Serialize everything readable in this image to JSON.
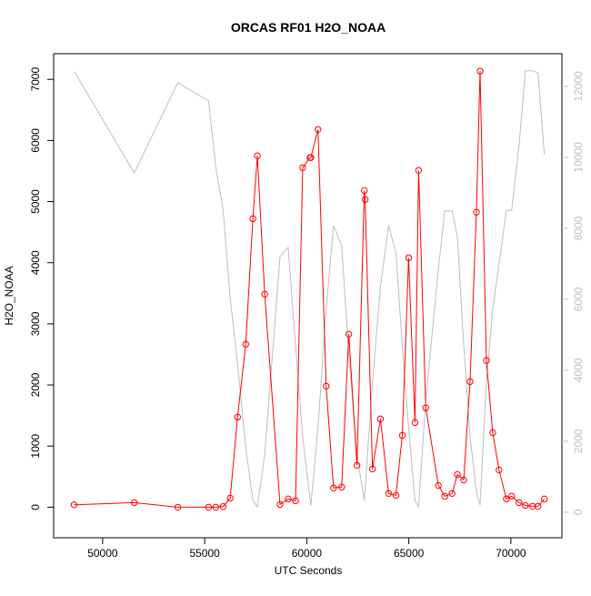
{
  "chart_data": {
    "type": "line",
    "title": "ORCAS RF01 H2O_NOAA",
    "xlabel": "UTC Seconds",
    "ylabel": "H2O_NOAA",
    "xlim": [
      47600,
      72500
    ],
    "ylim": [
      -500,
      7420
    ],
    "y2lim": [
      -720,
      12920
    ],
    "xticks": [
      50000,
      55000,
      60000,
      65000,
      70000
    ],
    "yticks": [
      0,
      1000,
      2000,
      3000,
      4000,
      5000,
      6000,
      7000
    ],
    "y2ticks": [
      0,
      2000,
      4000,
      6000,
      8000,
      10000,
      12000
    ],
    "series": [
      {
        "color": "#bebebe",
        "axis": "y2",
        "markers": false,
        "x": [
          48620,
          51550,
          53680,
          55190,
          55540,
          55900,
          56250,
          56610,
          57010,
          57360,
          57580,
          57940,
          58690,
          59090,
          59450,
          59800,
          60200,
          60550,
          60950,
          61310,
          61710,
          62060,
          62460,
          62820,
          63220,
          63610,
          64010,
          64370,
          64680,
          64990,
          65300,
          65480,
          65830,
          66450,
          66760,
          67120,
          67380,
          67690,
          68000,
          68310,
          68490,
          68800,
          69110,
          69420,
          69780,
          70040,
          70400,
          70710,
          71060,
          71330,
          71640
        ],
        "values": [
          12410,
          9560,
          12100,
          11590,
          9740,
          8540,
          6030,
          4180,
          1820,
          330,
          150,
          1620,
          7200,
          7460,
          4690,
          2130,
          180,
          2380,
          5720,
          8080,
          7510,
          4440,
          1620,
          330,
          3670,
          6360,
          8080,
          7310,
          4690,
          2380,
          330,
          150,
          3150,
          6870,
          8490,
          8490,
          7770,
          4690,
          2130,
          590,
          200,
          3670,
          5720,
          7000,
          8510,
          8510,
          10330,
          12440,
          12440,
          12380,
          10080
        ]
      },
      {
        "color": "#ff0000",
        "axis": "y",
        "markers": true,
        "x": [
          48600,
          51550,
          53680,
          55190,
          55540,
          55900,
          56250,
          56610,
          57010,
          57360,
          57580,
          57940,
          58690,
          59090,
          59450,
          59800,
          60160,
          60200,
          60550,
          60950,
          61310,
          61710,
          62060,
          62460,
          62820,
          62860,
          63220,
          63610,
          64010,
          64370,
          64680,
          64990,
          65300,
          65480,
          65830,
          66450,
          66760,
          67120,
          67380,
          67690,
          68000,
          68310,
          68490,
          68800,
          69110,
          69420,
          69780,
          70040,
          70400,
          70710,
          71060,
          71330,
          71640
        ],
        "values": [
          40,
          75,
          0,
          0,
          0,
          10,
          150,
          1475,
          2665,
          4720,
          5750,
          3485,
          45,
          135,
          105,
          5555,
          5720,
          5720,
          6180,
          1980,
          315,
          330,
          2830,
          685,
          5180,
          5035,
          625,
          1445,
          225,
          195,
          1175,
          4080,
          1385,
          5510,
          1625,
          355,
          180,
          225,
          535,
          445,
          2055,
          4825,
          7135,
          2400,
          1220,
          610,
          135,
          180,
          75,
          30,
          15,
          15,
          135
        ]
      }
    ]
  }
}
